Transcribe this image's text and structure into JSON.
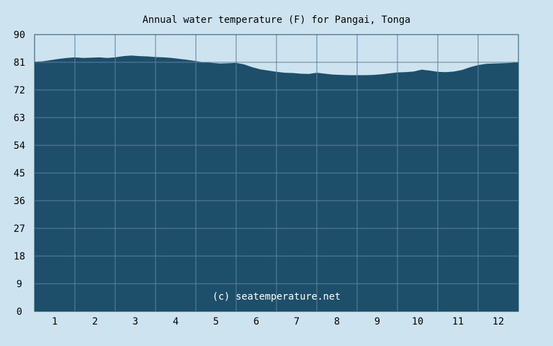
{
  "colors": {
    "background": "#cde3ef",
    "plot_fill": "#1d4f6b",
    "grid": "#5a82a0",
    "axis": "#1d4f6b",
    "text": "#000000",
    "watermark": "#ffffff"
  },
  "watermark": "(c) seatemperature.net",
  "chart_data": {
    "type": "area",
    "title": "Annual water temperature (F) for Pangai, Tonga",
    "xlabel": "",
    "ylabel": "",
    "ylim": [
      0,
      90
    ],
    "xlim": [
      0.5,
      12.5
    ],
    "grid": true,
    "legend": "none",
    "y_ticks": [
      "0",
      "9",
      "18",
      "27",
      "36",
      "45",
      "54",
      "63",
      "72",
      "81",
      "90"
    ],
    "x_ticks": [
      "1",
      "2",
      "3",
      "4",
      "5",
      "6",
      "7",
      "8",
      "9",
      "10",
      "11",
      "12"
    ],
    "series": [
      {
        "x": [
          0.5,
          0.7,
          0.9,
          1.1,
          1.3,
          1.5,
          1.7,
          1.9,
          2.1,
          2.3,
          2.5,
          2.7,
          2.9,
          3.1,
          3.3,
          3.5,
          3.7,
          3.9,
          4.1,
          4.3,
          4.5,
          4.7,
          4.9,
          5.1,
          5.3,
          5.5,
          5.7,
          5.9,
          6.1,
          6.3,
          6.5,
          6.7,
          6.9,
          7.1,
          7.3,
          7.5,
          7.7,
          7.9,
          8.1,
          8.3,
          8.5,
          8.7,
          8.9,
          9.1,
          9.3,
          9.5,
          9.7,
          9.9,
          10.1,
          10.3,
          10.5,
          10.7,
          10.9,
          11.1,
          11.3,
          11.5,
          11.7,
          11.9,
          12.1,
          12.3,
          12.5
        ],
        "values": [
          81.2,
          81.3,
          81.7,
          82.1,
          82.4,
          82.6,
          82.4,
          82.5,
          82.6,
          82.4,
          82.6,
          83.0,
          83.2,
          83.0,
          82.9,
          82.7,
          82.6,
          82.4,
          82.1,
          81.8,
          81.4,
          81.0,
          80.8,
          80.6,
          80.7,
          80.8,
          80.3,
          79.4,
          78.7,
          78.3,
          77.9,
          77.6,
          77.5,
          77.3,
          77.2,
          77.6,
          77.3,
          77.0,
          76.9,
          76.8,
          76.8,
          76.8,
          76.9,
          77.1,
          77.4,
          77.7,
          77.8,
          78.0,
          78.6,
          78.3,
          77.9,
          77.8,
          78.0,
          78.5,
          79.4,
          80.1,
          80.5,
          80.6,
          80.7,
          80.8,
          81.0
        ]
      }
    ]
  }
}
